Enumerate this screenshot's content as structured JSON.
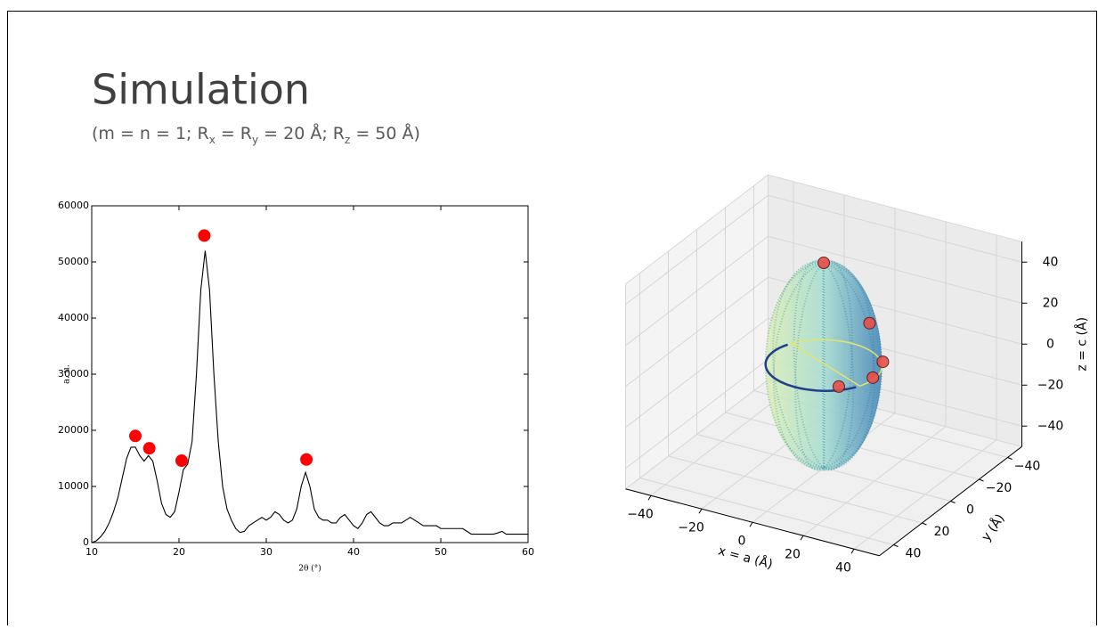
{
  "header": {
    "title": "Simulation",
    "subtitle": [
      "(m = n = 1; R",
      "x",
      " = R",
      "y",
      " = 20 Å; R",
      "z",
      " = 50 Å)"
    ]
  },
  "chart_data": [
    {
      "type": "line",
      "xlabel": "2θ (°)",
      "ylabel": "a. u.",
      "xlim": [
        10,
        60
      ],
      "ylim": [
        0,
        60000
      ],
      "xticks": [
        10,
        20,
        30,
        40,
        50,
        60
      ],
      "yticks": [
        0,
        10000,
        20000,
        30000,
        40000,
        50000,
        60000
      ],
      "series": [
        {
          "type": "line",
          "color": "#000000",
          "x": [
            10,
            10.5,
            11,
            11.5,
            12,
            12.5,
            13,
            13.5,
            14,
            14.5,
            15,
            15.5,
            16,
            16.5,
            17,
            17.5,
            18,
            18.5,
            19,
            19.5,
            20,
            20.5,
            21,
            21.5,
            22,
            22.5,
            23,
            23.5,
            24,
            24.5,
            25,
            25.5,
            26,
            26.5,
            27,
            27.5,
            28,
            28.5,
            29,
            29.5,
            30,
            30.5,
            31,
            31.5,
            32,
            32.5,
            33,
            33.5,
            34,
            34.5,
            35,
            35.5,
            36,
            36.5,
            37,
            37.5,
            38,
            38.5,
            39,
            39.5,
            40,
            40.5,
            41,
            41.5,
            42,
            42.5,
            43,
            43.5,
            44,
            44.5,
            45,
            45.5,
            46,
            46.5,
            47,
            47.5,
            48,
            48.5,
            49,
            49.5,
            50,
            50.5,
            51,
            51.5,
            52,
            52.5,
            53,
            53.5,
            54,
            54.5,
            55,
            55.5,
            56,
            56.5,
            57,
            57.5,
            58,
            58.5,
            59,
            59.5,
            60
          ],
          "values": [
            0,
            300,
            1000,
            2000,
            3500,
            5500,
            8000,
            11500,
            15000,
            17000,
            17000,
            15500,
            14500,
            15500,
            14500,
            11000,
            7000,
            5000,
            4500,
            5500,
            9000,
            13000,
            14000,
            18000,
            30000,
            45000,
            52000,
            45000,
            30000,
            18000,
            10000,
            6000,
            4000,
            2500,
            1800,
            2000,
            3000,
            3500,
            4000,
            4500,
            4000,
            4500,
            5500,
            5000,
            4000,
            3500,
            4000,
            6000,
            10000,
            12500,
            10000,
            6000,
            4500,
            4000,
            4000,
            3500,
            3500,
            4500,
            5000,
            4000,
            3000,
            2500,
            3500,
            5000,
            5500,
            4500,
            3500,
            3000,
            3000,
            3500,
            3500,
            3500,
            4000,
            4500,
            4000,
            3500,
            3000,
            3000,
            3000,
            3000,
            2500,
            2500,
            2500,
            2500,
            2500,
            2500,
            2000,
            1500,
            1500,
            1500,
            1500,
            1500,
            1500,
            1700,
            2000,
            1500,
            1500,
            1500,
            1500,
            1500,
            1500
          ]
        },
        {
          "type": "scatter",
          "color": "#ff0000",
          "x": [
            15,
            16.6,
            20.3,
            22.9,
            34.6
          ],
          "values": [
            19000,
            16800,
            14600,
            54700,
            14800
          ]
        }
      ]
    },
    {
      "type": "scatter3d",
      "xlabel": "x = a (Å)",
      "ylabel": "y (Å)",
      "zlabel": "z = c (Å)",
      "xlim": [
        -50,
        50
      ],
      "ylim": [
        -50,
        50
      ],
      "zlim": [
        -50,
        50
      ],
      "xticks": [
        {
          "value": -40,
          "label": "−40"
        },
        {
          "value": -20,
          "label": "−20"
        },
        0,
        20,
        40
      ],
      "yticks": [
        {
          "value": -40,
          "label": "−40"
        },
        {
          "value": -20,
          "label": "−20"
        },
        0,
        20,
        40
      ],
      "zticks": [
        {
          "value": -40,
          "label": "−40"
        },
        {
          "value": -20,
          "label": "−20"
        },
        0,
        20,
        40
      ],
      "series": [
        {
          "color": "#e8504a",
          "x": [
            0,
            13,
            16,
            16,
            11
          ],
          "y": [
            0,
            -9,
            -13,
            -6,
            9
          ],
          "z": [
            50,
            20,
            0,
            -4,
            -2
          ]
        }
      ]
    }
  ]
}
